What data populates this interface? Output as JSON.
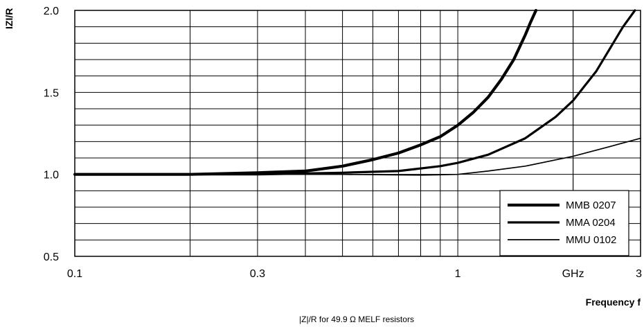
{
  "chart_data": {
    "type": "line",
    "x_scale": "log",
    "xlim": [
      0.1,
      3
    ],
    "ylim": [
      0.5,
      2.0
    ],
    "grid": true,
    "x_grid_minor": [
      0.2,
      0.4,
      0.5,
      0.6,
      0.7,
      0.8,
      0.9,
      2
    ],
    "y_grid_step": 0.1,
    "x_ticks": [
      {
        "value": 0.1,
        "label": "0.1"
      },
      {
        "value": 0.3,
        "label": "0.3"
      },
      {
        "value": 1,
        "label": "1"
      },
      {
        "value": 2,
        "label": "GHz"
      },
      {
        "value": 3,
        "label": "3"
      }
    ],
    "y_ticks": [
      {
        "value": 0.5,
        "label": "0.5"
      },
      {
        "value": 1.0,
        "label": "1.0"
      },
      {
        "value": 1.5,
        "label": "1.5"
      },
      {
        "value": 2.0,
        "label": "2.0"
      }
    ],
    "ylabel": "IZI/R",
    "xlabel": "Frequency f",
    "caption": "|Z|/R for 49.9 Ω MELF resistors",
    "legend_position": "bottom-right",
    "series": [
      {
        "name": "MMB 0207",
        "x": [
          0.1,
          0.2,
          0.3,
          0.4,
          0.5,
          0.6,
          0.7,
          0.8,
          0.9,
          1.0,
          1.1,
          1.2,
          1.3,
          1.4,
          1.5,
          1.55,
          1.6
        ],
        "y": [
          1.0,
          1.0,
          1.01,
          1.02,
          1.05,
          1.09,
          1.13,
          1.18,
          1.23,
          1.3,
          1.38,
          1.47,
          1.58,
          1.7,
          1.85,
          1.93,
          2.0
        ]
      },
      {
        "name": "MMA 0204",
        "x": [
          0.1,
          0.3,
          0.5,
          0.7,
          0.9,
          1.0,
          1.2,
          1.5,
          1.8,
          2.0,
          2.3,
          2.5,
          2.7,
          2.9
        ],
        "y": [
          1.0,
          1.0,
          1.01,
          1.02,
          1.05,
          1.07,
          1.12,
          1.22,
          1.35,
          1.45,
          1.63,
          1.77,
          1.9,
          2.0
        ]
      },
      {
        "name": "MMU 0102",
        "x": [
          0.1,
          0.5,
          0.8,
          1.0,
          1.2,
          1.5,
          2.0,
          2.5,
          3.0
        ],
        "y": [
          1.0,
          1.0,
          0.995,
          1.0,
          1.02,
          1.05,
          1.11,
          1.17,
          1.22
        ]
      }
    ]
  },
  "series_styles": [
    {
      "stroke_color": "#000000",
      "weight": "heavy"
    },
    {
      "stroke_color": "#000000",
      "weight": "medium"
    },
    {
      "stroke_color": "#000000",
      "weight": "light"
    }
  ]
}
